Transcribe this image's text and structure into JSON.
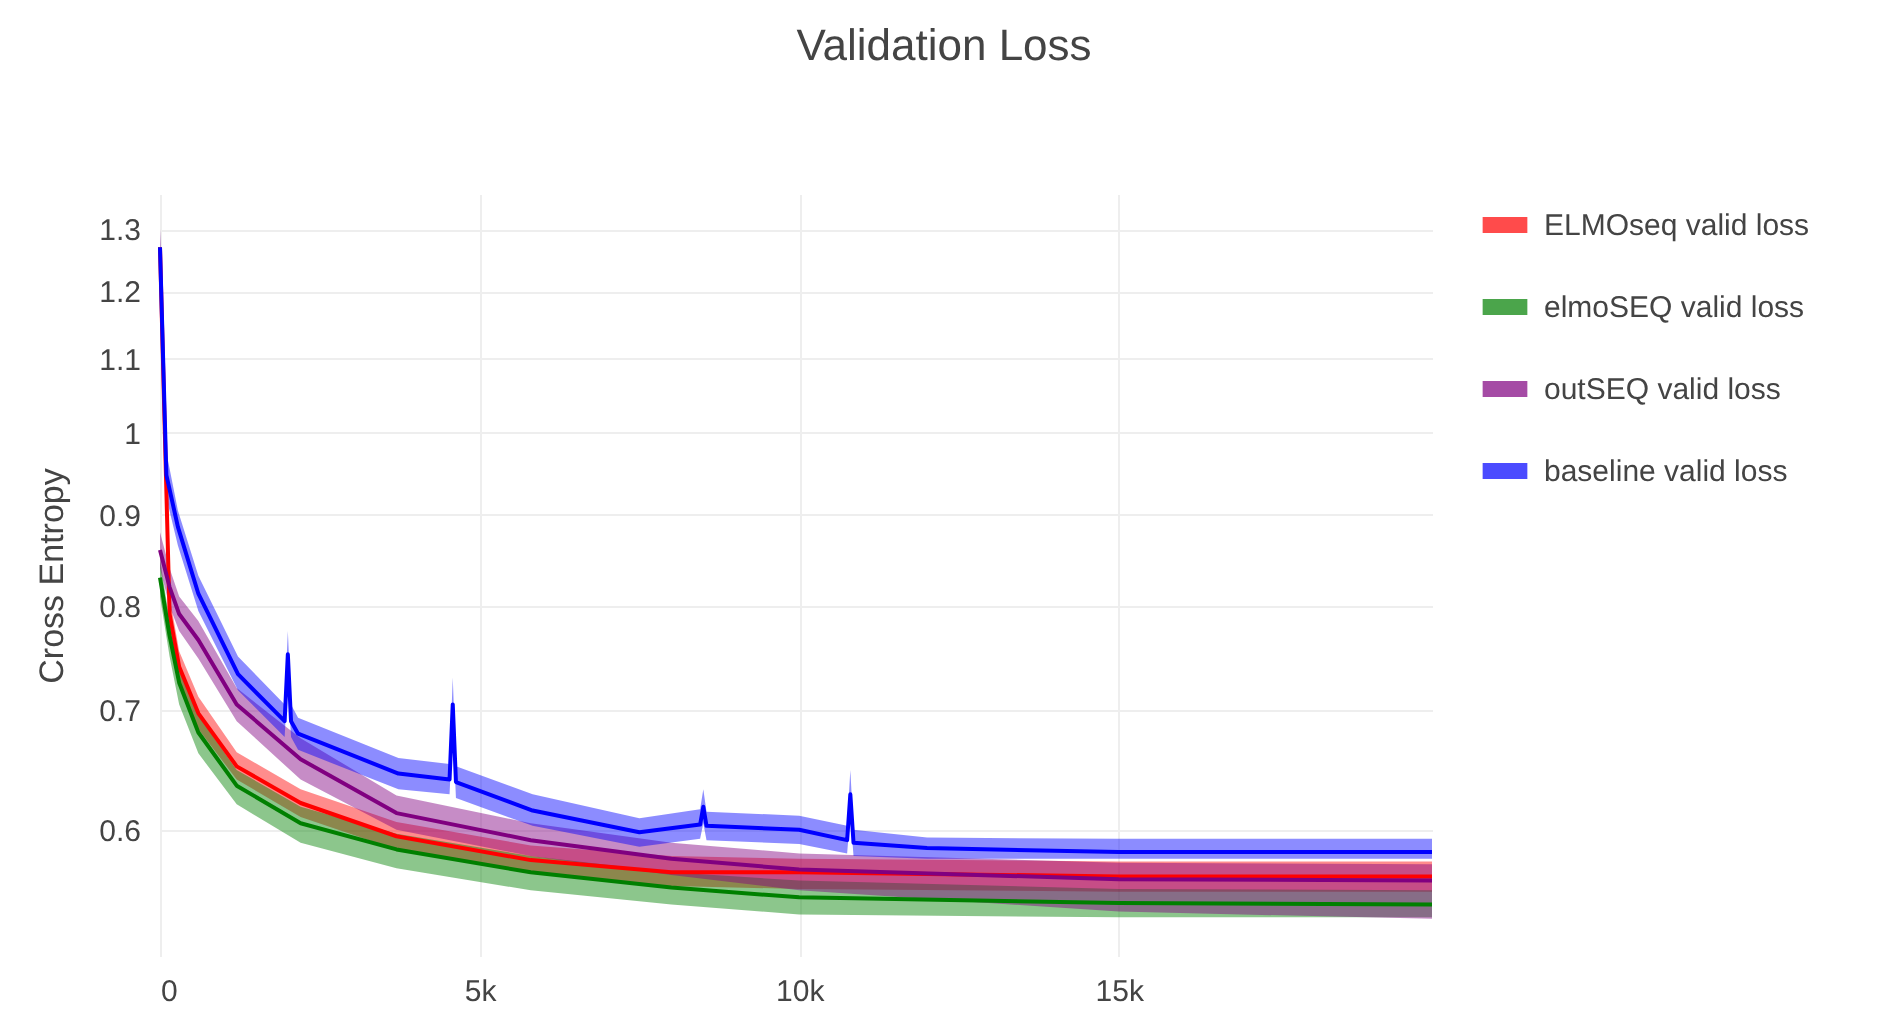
{
  "chart_data": {
    "type": "line",
    "title": "Validation Loss",
    "ylabel": "Cross Entropy",
    "log": "y",
    "grid": true,
    "legend": "top right",
    "marker": "none",
    "line_style": "solid",
    "xlim": [
      0,
      19900
    ],
    "xticks": [
      0,
      {
        "value": 5000,
        "label": "5k"
      },
      {
        "value": 10000,
        "label": "10k"
      },
      {
        "value": 15000,
        "label": "15k"
      }
    ],
    "ylim": [
      0.51,
      1.36
    ],
    "yticks": [
      0.6,
      0.7,
      0.8,
      0.9,
      1,
      1.1,
      1.2,
      1.3
    ],
    "x": [
      0,
      150,
      300,
      600,
      1200,
      2200,
      3700,
      5800,
      8000,
      10000,
      15000,
      19900
    ],
    "series": [
      {
        "name": "ELMOseq valid loss",
        "color": "#ff0000",
        "values": [
          1.27,
          0.792,
          0.74,
          0.697,
          0.651,
          0.621,
          0.595,
          0.577,
          0.568,
          0.568,
          0.565,
          0.565
        ],
        "lower": [
          1.24,
          0.775,
          0.725,
          0.683,
          0.64,
          0.61,
          0.585,
          0.567,
          0.558,
          0.556,
          0.554,
          0.554
        ],
        "upper": [
          1.3,
          0.81,
          0.755,
          0.712,
          0.663,
          0.632,
          0.606,
          0.588,
          0.58,
          0.578,
          0.576,
          0.576
        ]
      },
      {
        "name": "elmoSEQ valid loss",
        "color": "#008000",
        "values": [
          0.83,
          0.77,
          0.725,
          0.68,
          0.635,
          0.605,
          0.585,
          0.568,
          0.557,
          0.55,
          0.546,
          0.545
        ],
        "lower": [
          0.81,
          0.75,
          0.705,
          0.662,
          0.62,
          0.59,
          0.571,
          0.555,
          0.545,
          0.538,
          0.536,
          0.536
        ],
        "upper": [
          0.85,
          0.785,
          0.74,
          0.695,
          0.648,
          0.618,
          0.597,
          0.58,
          0.568,
          0.562,
          0.556,
          0.555
        ]
      },
      {
        "name": "outSEQ valid loss",
        "color": "#800080",
        "values": [
          0.86,
          0.82,
          0.792,
          0.766,
          0.705,
          0.657,
          0.613,
          0.592,
          0.578,
          0.57,
          0.563,
          0.562
        ],
        "lower": [
          0.84,
          0.8,
          0.775,
          0.748,
          0.69,
          0.64,
          0.6,
          0.58,
          0.566,
          0.555,
          0.54,
          0.535
        ],
        "upper": [
          0.88,
          0.84,
          0.81,
          0.785,
          0.72,
          0.675,
          0.627,
          0.605,
          0.59,
          0.582,
          0.575,
          0.574
        ]
      },
      {
        "name": "baseline valid loss",
        "color": "#0000ff",
        "x": [
          0,
          100,
          280,
          600,
          1220,
          1950,
          2000,
          2050,
          2160,
          3730,
          4530,
          4580,
          4630,
          5830,
          7500,
          8450,
          8500,
          8550,
          10000,
          10750,
          10800,
          10850,
          12000,
          15000,
          19900
        ],
        "values": [
          1.27,
          0.947,
          0.886,
          0.813,
          0.733,
          0.69,
          0.752,
          0.69,
          0.679,
          0.645,
          0.64,
          0.705,
          0.638,
          0.615,
          0.598,
          0.604,
          0.618,
          0.603,
          0.6,
          0.592,
          0.628,
          0.59,
          0.586,
          0.583,
          0.583
        ],
        "lower": [
          1.24,
          0.92,
          0.865,
          0.795,
          0.718,
          0.676,
          0.73,
          0.676,
          0.665,
          0.632,
          0.628,
          0.685,
          0.625,
          0.603,
          0.587,
          0.593,
          0.605,
          0.592,
          0.589,
          0.582,
          0.612,
          0.58,
          0.578,
          0.578,
          0.578
        ],
        "upper": [
          1.3,
          0.975,
          0.905,
          0.832,
          0.75,
          0.705,
          0.775,
          0.705,
          0.693,
          0.658,
          0.653,
          0.73,
          0.651,
          0.628,
          0.609,
          0.616,
          0.632,
          0.614,
          0.611,
          0.603,
          0.648,
          0.6,
          0.594,
          0.593,
          0.593
        ]
      }
    ]
  }
}
